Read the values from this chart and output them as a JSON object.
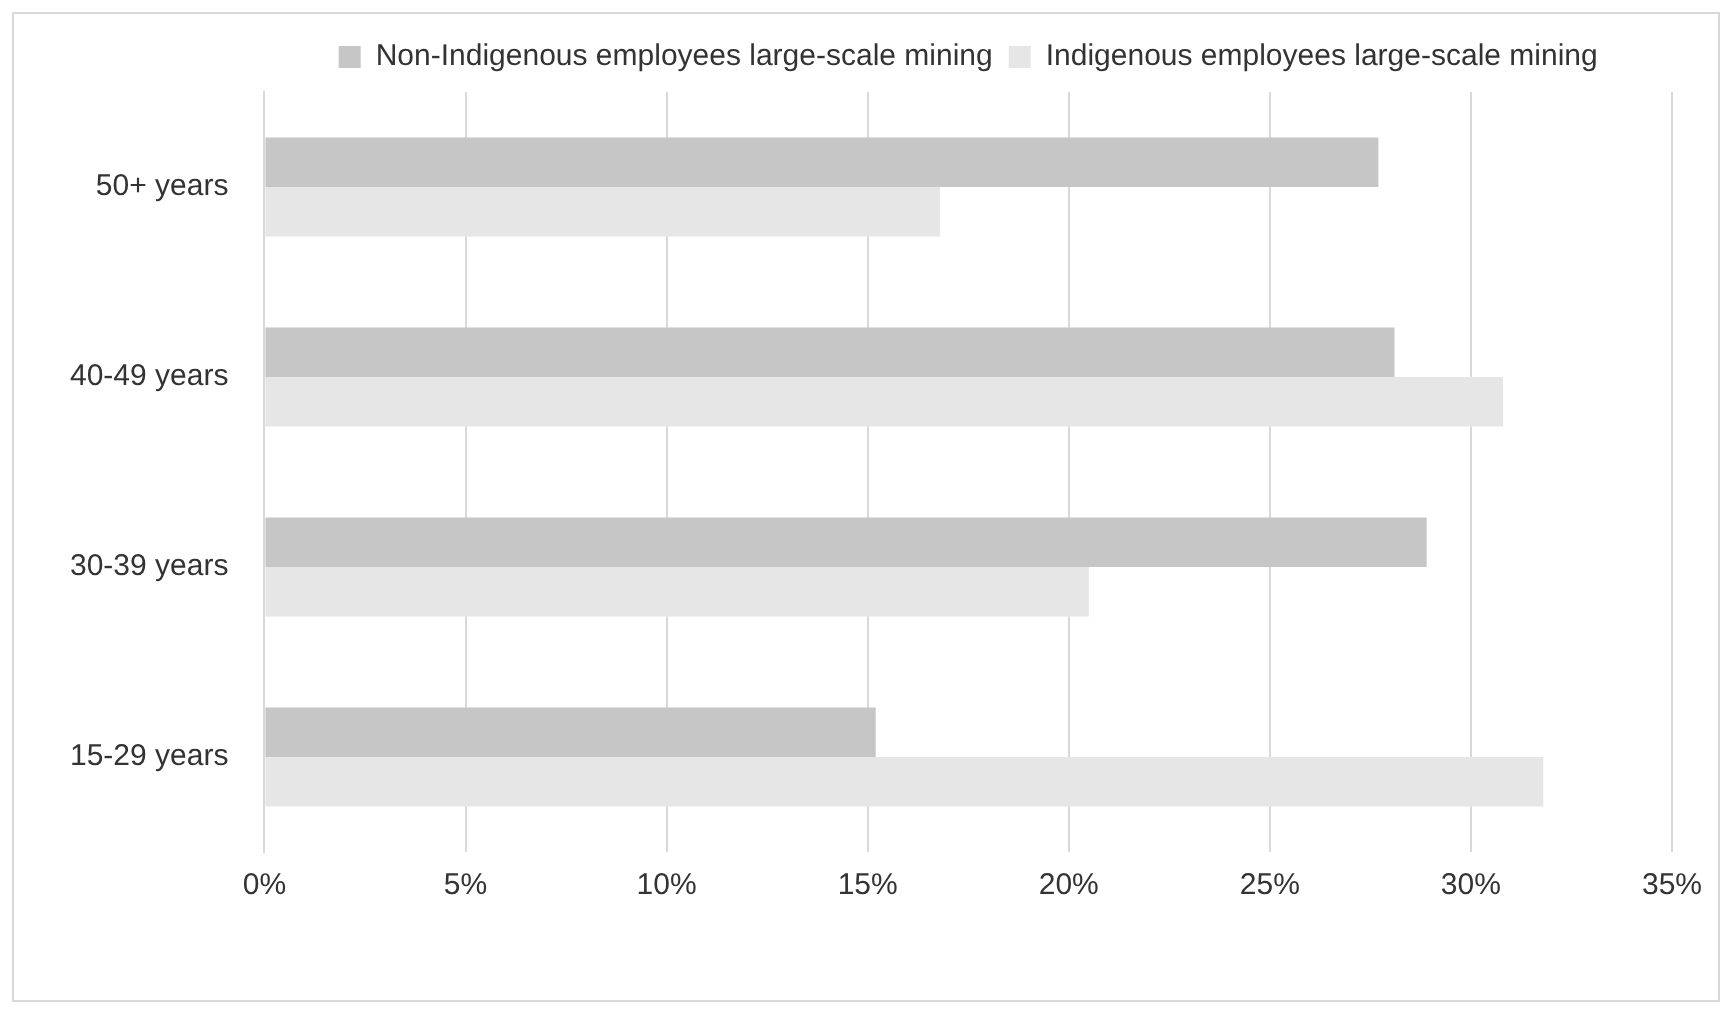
{
  "chart_data": {
    "type": "bar",
    "orientation": "horizontal",
    "categories": [
      "50+ years",
      "40-49 years",
      "30-39 years",
      "15-29 years"
    ],
    "series": [
      {
        "name": "Non-Indigenous employees large-scale mining",
        "color": "#c6c6c6",
        "values": [
          27.7,
          28.1,
          28.9,
          15.2
        ]
      },
      {
        "name": "Indigenous employees large-scale mining",
        "color": "#e7e6e6",
        "values": [
          16.8,
          30.8,
          20.5,
          31.8
        ]
      }
    ],
    "xlim": [
      0,
      35
    ],
    "xticks": [
      {
        "value": 0,
        "label": "0%"
      },
      {
        "value": 5,
        "label": "5%"
      },
      {
        "value": 10,
        "label": "10%"
      },
      {
        "value": 15,
        "label": "15%"
      },
      {
        "value": 20,
        "label": "20%"
      },
      {
        "value": 25,
        "label": "25%"
      },
      {
        "value": 30,
        "label": "30%"
      },
      {
        "value": 35,
        "label": "35%"
      }
    ],
    "grid": "x",
    "legend": "top"
  }
}
